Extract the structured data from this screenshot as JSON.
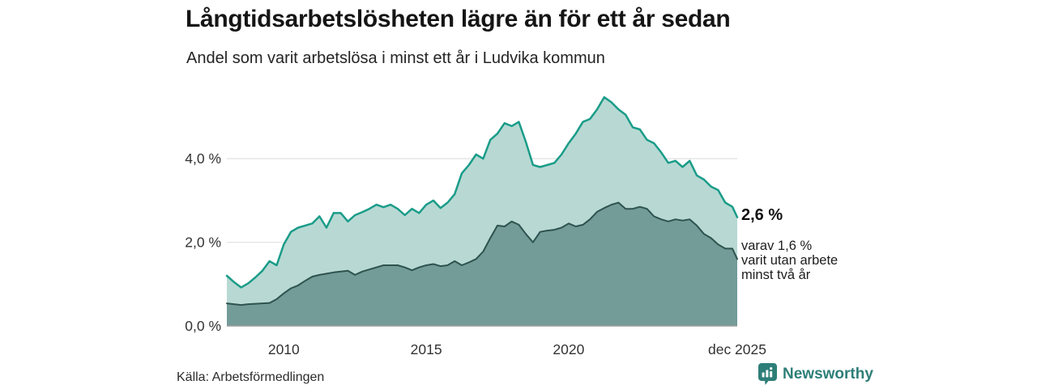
{
  "header": {
    "title": "Långtidsarbetslösheten lägre än för ett år sedan",
    "subtitle": "Andel som varit arbetslösa i minst ett år i Ludvika kommun"
  },
  "annotation": {
    "value_label": "2,6 %",
    "detail_lines": [
      "varav 1,6 %",
      "varit utan arbete",
      "minst två år"
    ]
  },
  "footer": {
    "source": "Källa: Arbetsförmedlingen",
    "brand": "Newsworthy"
  },
  "colors": {
    "total_line": "#1a9c89",
    "total_fill": "#b8d9d3",
    "two_year_line": "#2e534f",
    "two_year_fill": "#739b98",
    "gridline": "#e3e3e3",
    "baseline": "#9e9e9e",
    "tick_text": "#333333",
    "brand_teal": "#2e7e78"
  },
  "chart_data": {
    "type": "area",
    "title": "Långtidsarbetslösheten lägre än för ett år sedan",
    "subtitle": "Andel som varit arbetslösa i minst ett år i Ludvika kommun",
    "x_range": [
      2008,
      2025.92
    ],
    "y_range": [
      0,
      5.6
    ],
    "grid": true,
    "legend": "none",
    "yticks": [
      {
        "value": 0,
        "label": "0,0 %"
      },
      {
        "value": 2,
        "label": "2,0 %"
      },
      {
        "value": 4,
        "label": "4,0 %"
      }
    ],
    "xticks": [
      {
        "value": 2010,
        "label": "2010"
      },
      {
        "value": 2015,
        "label": "2015"
      },
      {
        "value": 2020,
        "label": "2020"
      },
      {
        "value": 2025.92,
        "label": "dec 2025"
      }
    ],
    "series": [
      {
        "id": "unemployed_min_one_year",
        "end_value_label": "2,6 %",
        "fill": "#b8d9d3",
        "stroke": "#1a9c89",
        "stroke_width": 2.5,
        "points": [
          [
            2008.0,
            1.2
          ],
          [
            2008.25,
            1.05
          ],
          [
            2008.5,
            0.92
          ],
          [
            2008.75,
            1.02
          ],
          [
            2009.0,
            1.16
          ],
          [
            2009.25,
            1.32
          ],
          [
            2009.5,
            1.55
          ],
          [
            2009.75,
            1.45
          ],
          [
            2010.0,
            1.95
          ],
          [
            2010.25,
            2.25
          ],
          [
            2010.5,
            2.35
          ],
          [
            2010.75,
            2.4
          ],
          [
            2011.0,
            2.45
          ],
          [
            2011.25,
            2.62
          ],
          [
            2011.5,
            2.35
          ],
          [
            2011.75,
            2.7
          ],
          [
            2012.0,
            2.7
          ],
          [
            2012.25,
            2.5
          ],
          [
            2012.5,
            2.65
          ],
          [
            2012.75,
            2.72
          ],
          [
            2013.0,
            2.8
          ],
          [
            2013.25,
            2.9
          ],
          [
            2013.5,
            2.84
          ],
          [
            2013.75,
            2.9
          ],
          [
            2014.0,
            2.8
          ],
          [
            2014.25,
            2.65
          ],
          [
            2014.5,
            2.8
          ],
          [
            2014.75,
            2.7
          ],
          [
            2015.0,
            2.9
          ],
          [
            2015.25,
            3.0
          ],
          [
            2015.5,
            2.82
          ],
          [
            2015.75,
            2.95
          ],
          [
            2016.0,
            3.15
          ],
          [
            2016.25,
            3.65
          ],
          [
            2016.5,
            3.85
          ],
          [
            2016.75,
            4.1
          ],
          [
            2017.0,
            4.0
          ],
          [
            2017.25,
            4.45
          ],
          [
            2017.5,
            4.6
          ],
          [
            2017.75,
            4.85
          ],
          [
            2018.0,
            4.78
          ],
          [
            2018.25,
            4.88
          ],
          [
            2018.5,
            4.4
          ],
          [
            2018.75,
            3.85
          ],
          [
            2019.0,
            3.8
          ],
          [
            2019.25,
            3.85
          ],
          [
            2019.5,
            3.9
          ],
          [
            2019.75,
            4.1
          ],
          [
            2020.0,
            4.37
          ],
          [
            2020.25,
            4.6
          ],
          [
            2020.5,
            4.88
          ],
          [
            2020.75,
            4.95
          ],
          [
            2021.0,
            5.18
          ],
          [
            2021.25,
            5.47
          ],
          [
            2021.5,
            5.35
          ],
          [
            2021.75,
            5.18
          ],
          [
            2022.0,
            5.05
          ],
          [
            2022.25,
            4.75
          ],
          [
            2022.5,
            4.7
          ],
          [
            2022.75,
            4.45
          ],
          [
            2023.0,
            4.37
          ],
          [
            2023.25,
            4.15
          ],
          [
            2023.5,
            3.9
          ],
          [
            2023.75,
            3.95
          ],
          [
            2024.0,
            3.8
          ],
          [
            2024.25,
            3.95
          ],
          [
            2024.5,
            3.6
          ],
          [
            2024.75,
            3.5
          ],
          [
            2025.0,
            3.33
          ],
          [
            2025.25,
            3.25
          ],
          [
            2025.5,
            2.95
          ],
          [
            2025.75,
            2.85
          ],
          [
            2025.92,
            2.6
          ]
        ]
      },
      {
        "id": "unemployed_min_two_years",
        "end_value_label": "1,6 %",
        "fill": "#739b98",
        "stroke": "#2e534f",
        "stroke_width": 2,
        "points": [
          [
            2008.0,
            0.54
          ],
          [
            2008.25,
            0.52
          ],
          [
            2008.5,
            0.5
          ],
          [
            2008.75,
            0.52
          ],
          [
            2009.0,
            0.53
          ],
          [
            2009.25,
            0.54
          ],
          [
            2009.5,
            0.55
          ],
          [
            2009.75,
            0.64
          ],
          [
            2010.0,
            0.78
          ],
          [
            2010.25,
            0.9
          ],
          [
            2010.5,
            0.97
          ],
          [
            2010.75,
            1.08
          ],
          [
            2011.0,
            1.18
          ],
          [
            2011.25,
            1.22
          ],
          [
            2011.5,
            1.25
          ],
          [
            2011.75,
            1.28
          ],
          [
            2012.0,
            1.3
          ],
          [
            2012.25,
            1.32
          ],
          [
            2012.5,
            1.22
          ],
          [
            2012.75,
            1.3
          ],
          [
            2013.0,
            1.35
          ],
          [
            2013.25,
            1.4
          ],
          [
            2013.5,
            1.45
          ],
          [
            2013.75,
            1.45
          ],
          [
            2014.0,
            1.45
          ],
          [
            2014.25,
            1.4
          ],
          [
            2014.5,
            1.33
          ],
          [
            2014.75,
            1.4
          ],
          [
            2015.0,
            1.45
          ],
          [
            2015.25,
            1.48
          ],
          [
            2015.5,
            1.43
          ],
          [
            2015.75,
            1.45
          ],
          [
            2016.0,
            1.55
          ],
          [
            2016.25,
            1.45
          ],
          [
            2016.5,
            1.52
          ],
          [
            2016.75,
            1.6
          ],
          [
            2017.0,
            1.78
          ],
          [
            2017.25,
            2.1
          ],
          [
            2017.5,
            2.4
          ],
          [
            2017.75,
            2.38
          ],
          [
            2018.0,
            2.5
          ],
          [
            2018.25,
            2.42
          ],
          [
            2018.5,
            2.2
          ],
          [
            2018.75,
            2.0
          ],
          [
            2019.0,
            2.25
          ],
          [
            2019.25,
            2.28
          ],
          [
            2019.5,
            2.3
          ],
          [
            2019.75,
            2.35
          ],
          [
            2020.0,
            2.45
          ],
          [
            2020.25,
            2.38
          ],
          [
            2020.5,
            2.42
          ],
          [
            2020.75,
            2.55
          ],
          [
            2021.0,
            2.73
          ],
          [
            2021.25,
            2.82
          ],
          [
            2021.5,
            2.9
          ],
          [
            2021.75,
            2.95
          ],
          [
            2022.0,
            2.8
          ],
          [
            2022.25,
            2.8
          ],
          [
            2022.5,
            2.85
          ],
          [
            2022.75,
            2.8
          ],
          [
            2023.0,
            2.62
          ],
          [
            2023.25,
            2.55
          ],
          [
            2023.5,
            2.5
          ],
          [
            2023.75,
            2.55
          ],
          [
            2024.0,
            2.52
          ],
          [
            2024.25,
            2.55
          ],
          [
            2024.5,
            2.4
          ],
          [
            2024.75,
            2.2
          ],
          [
            2025.0,
            2.1
          ],
          [
            2025.25,
            1.95
          ],
          [
            2025.5,
            1.85
          ],
          [
            2025.75,
            1.85
          ],
          [
            2025.92,
            1.6
          ]
        ]
      }
    ]
  }
}
